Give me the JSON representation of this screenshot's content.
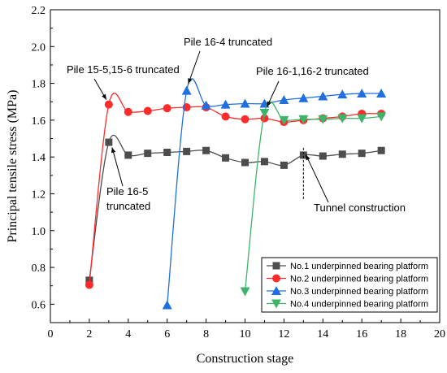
{
  "chart_data": {
    "type": "line",
    "xlabel": "Construction stage",
    "ylabel": "Principal tensile stress  (MPa)",
    "xlim": [
      0,
      20
    ],
    "ylim": [
      0.5,
      2.2
    ],
    "xticks": [
      0,
      2,
      4,
      6,
      8,
      10,
      12,
      14,
      16,
      18,
      20
    ],
    "yticks": [
      0.6,
      0.8,
      1.0,
      1.2,
      1.4,
      1.6,
      1.8,
      2.0,
      2.2
    ],
    "ytick_labels": [
      "0.6",
      "0.8",
      "1.0",
      "1.2",
      "1.4",
      "1.6",
      "1.8",
      "2.0",
      "2.2"
    ],
    "legend_position": "bottom-right",
    "grid": false,
    "series": [
      {
        "name": "No.1 underpinned bearing platform",
        "color": "#4d4d4d",
        "marker": "square",
        "x": [
          2,
          3,
          4,
          5,
          6,
          7,
          8,
          9,
          10,
          11,
          12,
          13,
          14,
          15,
          16,
          17
        ],
        "y": [
          0.73,
          1.48,
          1.41,
          1.42,
          1.425,
          1.43,
          1.435,
          1.395,
          1.37,
          1.375,
          1.355,
          1.41,
          1.405,
          1.415,
          1.42,
          1.435
        ]
      },
      {
        "name": "No.2 underpinned bearing platform",
        "color": "#ff2a2a",
        "marker": "circle",
        "x": [
          2,
          3,
          4,
          5,
          6,
          7,
          8,
          9,
          10,
          11,
          12,
          13,
          14,
          15,
          16,
          17
        ],
        "y": [
          0.705,
          1.685,
          1.645,
          1.65,
          1.665,
          1.67,
          1.67,
          1.62,
          1.605,
          1.61,
          1.59,
          1.6,
          1.61,
          1.62,
          1.635,
          1.635
        ]
      },
      {
        "name": "No.3 underpinned bearing platform",
        "color": "#1f6fe0",
        "marker": "triangle-up",
        "x": [
          6,
          7,
          8,
          9,
          10,
          11,
          12,
          13,
          14,
          15,
          16,
          17
        ],
        "y": [
          0.595,
          1.76,
          1.68,
          1.685,
          1.69,
          1.69,
          1.71,
          1.72,
          1.73,
          1.74,
          1.745,
          1.745
        ]
      },
      {
        "name": "No.4 underpinned bearing platform",
        "color": "#3cb56a",
        "marker": "triangle-down",
        "x": [
          10,
          11,
          12,
          13,
          14,
          15,
          16,
          17
        ],
        "y": [
          0.67,
          1.64,
          1.6,
          1.605,
          1.605,
          1.61,
          1.61,
          1.62
        ]
      }
    ],
    "annotations": [
      {
        "text": "Pile 15-5,15-6 truncated",
        "point": [
          3,
          1.685
        ]
      },
      {
        "text": "Pile 16-4 truncated",
        "point": [
          7,
          1.78
        ]
      },
      {
        "text": "Pile 16-1,16-2 truncated",
        "point": [
          11,
          1.65
        ]
      },
      {
        "text": "Pile 16-5",
        "text2": "truncated",
        "point": [
          3,
          1.47
        ]
      },
      {
        "text": "Tunnel construction",
        "point": [
          13,
          1.43
        ]
      }
    ],
    "vline": {
      "x": 13,
      "y_from": 1.45,
      "y_to": 1.17
    }
  }
}
